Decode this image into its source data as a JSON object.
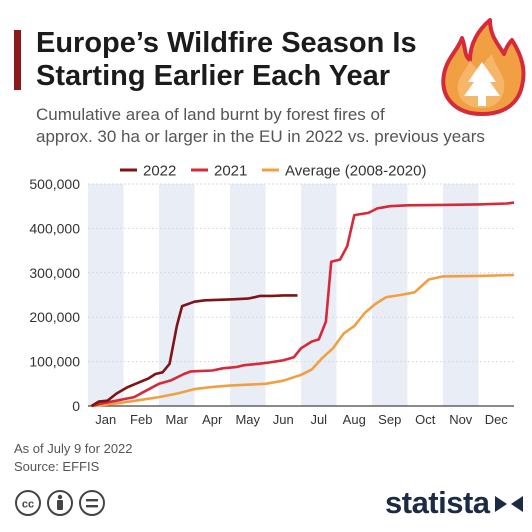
{
  "header": {
    "title_line1": "Europe’s Wildfire Season Is",
    "title_line2": "Starting Earlier Each Year",
    "subtitle_line1": "Cumulative area of land burnt by forest fires of",
    "subtitle_line2": "approx. 30 ha or larger in the EU in 2022 vs. previous years"
  },
  "footer": {
    "note": "As of July 9 for 2022",
    "source": "Source: EFFIS",
    "brand": "statista"
  },
  "colors": {
    "s2022": "#7d1416",
    "s2021": "#d6293a",
    "avg": "#f0a043",
    "band": "#e9edf5",
    "accent": "#8b1a1a"
  },
  "icons": [
    "flame-tree-icon",
    "cc-icon",
    "attribution-icon",
    "no-derivatives-icon",
    "statista-logo-icon"
  ],
  "chart_data": {
    "type": "line",
    "x_unit": "month of year (1 = start of January)",
    "xlim": [
      1,
      13
    ],
    "ylim": [
      0,
      500000
    ],
    "yticks": [
      0,
      100000,
      200000,
      300000,
      400000,
      500000
    ],
    "ytick_labels": [
      "0",
      "100,000",
      "200,000",
      "300,000",
      "400,000",
      "500,000"
    ],
    "month_ticks": [
      "Jan",
      "Feb",
      "Mar",
      "Apr",
      "May",
      "Jun",
      "Jul",
      "Aug",
      "Sep",
      "Oct",
      "Nov",
      "Dec"
    ],
    "shaded_months": [
      1,
      3,
      5,
      7,
      9,
      11
    ],
    "legend_position": "top",
    "series": [
      {
        "name": "2022",
        "color": "#7d1416",
        "points": [
          [
            1.1,
            0
          ],
          [
            1.3,
            10000
          ],
          [
            1.55,
            12000
          ],
          [
            1.8,
            28000
          ],
          [
            2.1,
            42000
          ],
          [
            2.4,
            52000
          ],
          [
            2.7,
            62000
          ],
          [
            2.9,
            72000
          ],
          [
            3.1,
            76000
          ],
          [
            3.3,
            95000
          ],
          [
            3.5,
            180000
          ],
          [
            3.65,
            225000
          ],
          [
            4.0,
            235000
          ],
          [
            4.3,
            238000
          ],
          [
            5.0,
            240000
          ],
          [
            5.5,
            242000
          ],
          [
            5.7,
            245000
          ],
          [
            5.85,
            248000
          ],
          [
            6.2,
            248000
          ],
          [
            6.5,
            249000
          ],
          [
            6.9,
            249000
          ]
        ]
      },
      {
        "name": "2021",
        "color": "#d6293a",
        "points": [
          [
            1.1,
            0
          ],
          [
            1.4,
            6000
          ],
          [
            1.8,
            12000
          ],
          [
            2.3,
            20000
          ],
          [
            2.6,
            33000
          ],
          [
            3.0,
            50000
          ],
          [
            3.35,
            58000
          ],
          [
            3.7,
            72000
          ],
          [
            3.9,
            78000
          ],
          [
            4.5,
            80000
          ],
          [
            4.8,
            85000
          ],
          [
            5.2,
            88000
          ],
          [
            5.4,
            92000
          ],
          [
            5.8,
            95000
          ],
          [
            6.1,
            98000
          ],
          [
            6.5,
            103000
          ],
          [
            6.8,
            110000
          ],
          [
            7.0,
            130000
          ],
          [
            7.3,
            145000
          ],
          [
            7.5,
            150000
          ],
          [
            7.7,
            190000
          ],
          [
            7.85,
            325000
          ],
          [
            8.1,
            330000
          ],
          [
            8.3,
            360000
          ],
          [
            8.5,
            430000
          ],
          [
            8.9,
            435000
          ],
          [
            9.15,
            445000
          ],
          [
            9.5,
            450000
          ],
          [
            10.0,
            452000
          ],
          [
            11.0,
            453000
          ],
          [
            12.0,
            454000
          ],
          [
            12.8,
            456000
          ],
          [
            13.0,
            458000
          ]
        ]
      },
      {
        "name": "Average (2008-2020)",
        "color": "#f0a043",
        "points": [
          [
            1.1,
            0
          ],
          [
            1.5,
            3000
          ],
          [
            2.0,
            8000
          ],
          [
            2.5,
            14000
          ],
          [
            3.0,
            20000
          ],
          [
            3.5,
            28000
          ],
          [
            4.0,
            38000
          ],
          [
            4.5,
            43000
          ],
          [
            5.0,
            46000
          ],
          [
            5.5,
            48000
          ],
          [
            6.0,
            50000
          ],
          [
            6.5,
            57000
          ],
          [
            7.0,
            70000
          ],
          [
            7.3,
            82000
          ],
          [
            7.6,
            108000
          ],
          [
            7.9,
            130000
          ],
          [
            8.2,
            163000
          ],
          [
            8.5,
            180000
          ],
          [
            8.8,
            210000
          ],
          [
            9.1,
            230000
          ],
          [
            9.4,
            245000
          ],
          [
            9.8,
            250000
          ],
          [
            10.2,
            256000
          ],
          [
            10.6,
            285000
          ],
          [
            11.0,
            292000
          ],
          [
            12.0,
            293000
          ],
          [
            13.0,
            295000
          ]
        ]
      }
    ]
  }
}
